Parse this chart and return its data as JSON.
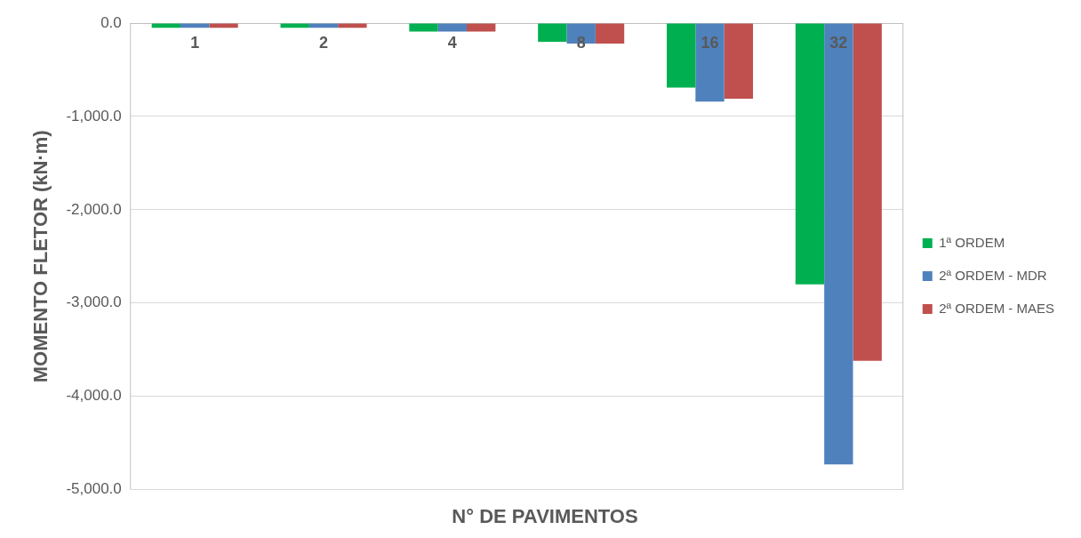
{
  "chart_data": {
    "type": "bar",
    "xlabel": "N° DE PAVIMENTOS",
    "ylabel": "MOMENTO FLETOR (kN·m)",
    "categories": [
      "1",
      "2",
      "4",
      "8",
      "16",
      "32"
    ],
    "series": [
      {
        "name": "1ª ORDEM",
        "color": "#00b050",
        "values": [
          -50,
          -50,
          -90,
          -200,
          -690,
          -2800
        ]
      },
      {
        "name": "2ª ORDEM - MDR",
        "color": "#4f81bd",
        "values": [
          -50,
          -50,
          -90,
          -220,
          -840,
          -4730
        ]
      },
      {
        "name": "2ª ORDEM - MAES",
        "color": "#c0504d",
        "values": [
          -50,
          -50,
          -90,
          -220,
          -810,
          -3620
        ]
      }
    ],
    "ylim": [
      -5000,
      0
    ],
    "yticks": [
      {
        "value": 0,
        "label": "0.0"
      },
      {
        "value": -1000,
        "label": "-1,000.0"
      },
      {
        "value": -2000,
        "label": "-2,000.0"
      },
      {
        "value": -3000,
        "label": "-3,000.0"
      },
      {
        "value": -4000,
        "label": "-4,000.0"
      },
      {
        "value": -5000,
        "label": "-5,000.0"
      }
    ],
    "grid": "y",
    "legend": "right"
  }
}
